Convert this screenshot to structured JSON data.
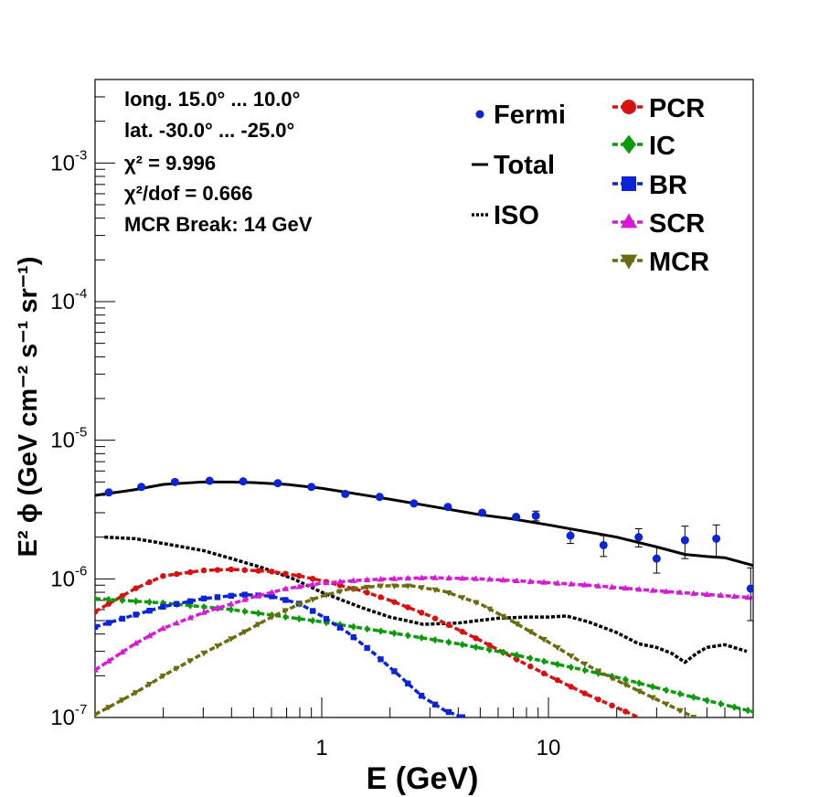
{
  "chart_data": {
    "type": "line",
    "xlabel": "E (GeV)",
    "ylabel": "E² ϕ (GeV cm⁻² s⁻¹ sr⁻¹)",
    "xlim": [
      0.1,
      80
    ],
    "ylim": [
      1e-07,
      0.004
    ],
    "x_scale": "log",
    "y_scale": "log",
    "grid": false,
    "x_ticks": [
      {
        "v": 1,
        "label": "1"
      },
      {
        "v": 10,
        "label": "10"
      }
    ],
    "y_ticks": [
      {
        "v": 1e-07,
        "base": "10",
        "exp": "-7"
      },
      {
        "v": 1e-06,
        "base": "10",
        "exp": "-6"
      },
      {
        "v": 1e-05,
        "base": "10",
        "exp": "-5"
      },
      {
        "v": 0.0001,
        "base": "10",
        "exp": "-4"
      },
      {
        "v": 0.001,
        "base": "10",
        "exp": "-3"
      }
    ],
    "info_lines": [
      "long. 15.0° ... 10.0°",
      "lat. -30.0° ... -25.0°",
      "χ² = 9.996",
      "χ²/dof = 0.666",
      "MCR Break: 14 GeV"
    ],
    "legend_left": [
      {
        "label": "Fermi",
        "color": "#0b24d6",
        "style": "point"
      },
      {
        "label": "Total",
        "color": "#000000",
        "style": "solid"
      },
      {
        "label": "ISO",
        "color": "#000000",
        "style": "dotted"
      }
    ],
    "legend_right": [
      {
        "label": "PCR",
        "color": "#d81010",
        "marker": "circle"
      },
      {
        "label": "IC",
        "color": "#0a9a0a",
        "marker": "diamond"
      },
      {
        "label": "BR",
        "color": "#0b24d6",
        "marker": "square"
      },
      {
        "label": "SCR",
        "color": "#d61ad6",
        "marker": "triangle-up"
      },
      {
        "label": "MCR",
        "color": "#6b6b10",
        "marker": "triangle-down"
      }
    ],
    "fermi": {
      "x": [
        0.115,
        0.16,
        0.225,
        0.32,
        0.45,
        0.64,
        0.9,
        1.27,
        1.8,
        2.55,
        3.6,
        5.1,
        7.2,
        8.8,
        12.5,
        17.5,
        25,
        30,
        40,
        55,
        78
      ],
      "y": [
        4.2e-06,
        4.6e-06,
        5e-06,
        5.1e-06,
        5.05e-06,
        4.9e-06,
        4.6e-06,
        4.1e-06,
        3.9e-06,
        3.5e-06,
        3.3e-06,
        3e-06,
        2.8e-06,
        2.85e-06,
        2.05e-06,
        1.75e-06,
        2e-06,
        1.4e-06,
        1.9e-06,
        1.95e-06,
        8.5e-07
      ],
      "err_lo": [
        0,
        0,
        0,
        0,
        0,
        0,
        0,
        0,
        0,
        0,
        0,
        0,
        0,
        2.3e-07,
        2.5e-07,
        3e-07,
        3e-07,
        3e-07,
        5e-07,
        5e-07,
        3.5e-07
      ],
      "err_hi": [
        0,
        0,
        0,
        0,
        0,
        0,
        0,
        0,
        0,
        0,
        0,
        0,
        0,
        2.3e-07,
        2.5e-07,
        3e-07,
        3e-07,
        3e-07,
        5e-07,
        5e-07,
        3.5e-07
      ]
    },
    "series": [
      {
        "name": "Total",
        "color": "#000000",
        "dash": "",
        "marker": "none",
        "x": [
          0.1,
          0.15,
          0.2,
          0.3,
          0.4,
          0.5,
          0.7,
          1,
          1.5,
          2,
          3,
          5,
          7,
          10,
          20,
          30,
          40,
          50,
          60,
          80
        ],
        "y": [
          4e-06,
          4.4e-06,
          4.8e-06,
          5e-06,
          5e-06,
          4.95e-06,
          4.8e-06,
          4.5e-06,
          4.05e-06,
          3.75e-06,
          3.35e-06,
          2.9e-06,
          2.7e-06,
          2.45e-06,
          2e-06,
          1.7e-06,
          1.5e-06,
          1.45e-06,
          1.42e-06,
          1.25e-06
        ]
      },
      {
        "name": "ISO",
        "color": "#000000",
        "dash": "4,2",
        "marker": "none",
        "x": [
          0.11,
          0.15,
          0.2,
          0.3,
          0.4,
          0.55,
          0.75,
          1,
          1.5,
          2,
          2.8,
          4,
          6,
          8,
          10,
          12,
          15,
          20,
          25,
          30,
          35,
          40,
          45,
          50,
          60,
          75
        ],
        "y": [
          2e-06,
          1.95e-06,
          1.8e-06,
          1.6e-06,
          1.4e-06,
          1.2e-06,
          1e-06,
          8e-07,
          6.2e-07,
          5.3e-07,
          4.7e-07,
          4.8e-07,
          5.2e-07,
          5.3e-07,
          5.3e-07,
          5.4e-07,
          4.9e-07,
          4.1e-07,
          3.4e-07,
          3.2e-07,
          2.9e-07,
          2.5e-07,
          2.9e-07,
          3.2e-07,
          3.35e-07,
          3e-07
        ]
      },
      {
        "name": "PCR",
        "color": "#d81010",
        "dash": "6,3",
        "marker": "circle",
        "x": [
          0.1,
          0.15,
          0.2,
          0.3,
          0.4,
          0.6,
          0.8,
          1,
          1.5,
          2,
          3,
          5,
          7,
          10,
          15,
          20,
          25
        ],
        "y": [
          5.8e-07,
          8.5e-07,
          1.05e-06,
          1.15e-06,
          1.17e-06,
          1.13e-06,
          1.05e-06,
          9.7e-07,
          8.2e-07,
          7e-07,
          5.4e-07,
          3.6e-07,
          2.7e-07,
          2e-07,
          1.45e-07,
          1.18e-07,
          1e-07
        ]
      },
      {
        "name": "IC",
        "color": "#0a9a0a",
        "dash": "6,3",
        "marker": "diamond",
        "x": [
          0.1,
          0.2,
          0.4,
          0.7,
          1,
          2,
          4,
          7,
          10,
          20,
          40,
          80
        ],
        "y": [
          7.2e-07,
          6.7e-07,
          6e-07,
          5.3e-07,
          4.9e-07,
          4.1e-07,
          3.4e-07,
          2.85e-07,
          2.5e-07,
          1.95e-07,
          1.45e-07,
          1.1e-07
        ]
      },
      {
        "name": "BR",
        "color": "#0b24d6",
        "dash": "6,3",
        "marker": "square",
        "x": [
          0.1,
          0.15,
          0.2,
          0.3,
          0.45,
          0.6,
          0.8,
          1,
          1.3,
          1.7,
          2.2,
          2.8,
          3.5,
          4.2
        ],
        "y": [
          4.5e-07,
          5.5e-07,
          6.3e-07,
          7.2e-07,
          7.7e-07,
          7.5e-07,
          6.6e-07,
          5.4e-07,
          4.1e-07,
          2.9e-07,
          2e-07,
          1.4e-07,
          1.12e-07,
          1e-07
        ]
      },
      {
        "name": "SCR",
        "color": "#d61ad6",
        "dash": "6,3",
        "marker": "triangle-up",
        "x": [
          0.1,
          0.15,
          0.2,
          0.3,
          0.5,
          0.7,
          1,
          1.5,
          2,
          3,
          5,
          8,
          15,
          30,
          80
        ],
        "y": [
          2.2e-07,
          3.4e-07,
          4.4e-07,
          5.7e-07,
          7.4e-07,
          8.5e-07,
          9.3e-07,
          9.8e-07,
          1e-06,
          1.02e-06,
          1e-06,
          9.6e-07,
          9e-07,
          8.2e-07,
          7.3e-07
        ]
      },
      {
        "name": "MCR",
        "color": "#6b6b10",
        "dash": "6,3",
        "marker": "triangle-down",
        "x": [
          0.1,
          0.15,
          0.2,
          0.3,
          0.45,
          0.6,
          0.8,
          1,
          1.3,
          1.8,
          2.5,
          3.5,
          5,
          7,
          10,
          14,
          20,
          30,
          40,
          50
        ],
        "y": [
          1.05e-07,
          1.5e-07,
          2e-07,
          2.9e-07,
          4.1e-07,
          5.3e-07,
          6.6e-07,
          7.5e-07,
          8.4e-07,
          8.9e-07,
          8.9e-07,
          8.1e-07,
          6.6e-07,
          4.9e-07,
          3.5e-07,
          2.5e-07,
          1.85e-07,
          1.35e-07,
          1.08e-07,
          9e-08
        ]
      }
    ]
  }
}
